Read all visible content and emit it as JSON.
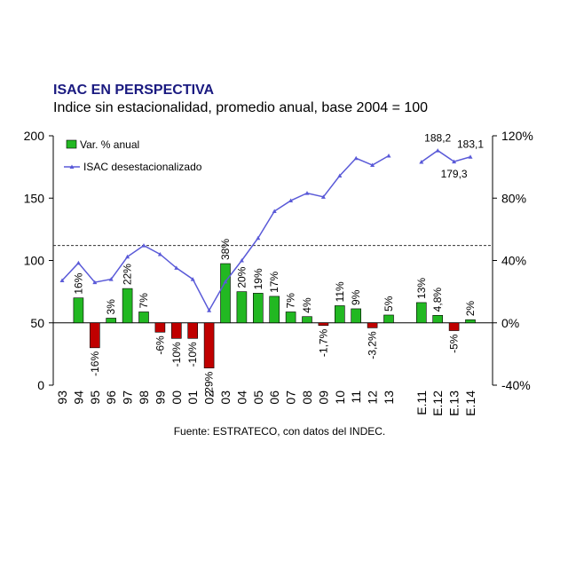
{
  "chart_data": {
    "type": "bar_line",
    "title": "ISAC EN PERSPECTIVA",
    "subtitle": "Indice sin estacionalidad, promedio anual, base 2004 = 100",
    "source": "Fuente: ESTRATECO, con datos del INDEC.",
    "categories": [
      "93",
      "94",
      "95",
      "96",
      "97",
      "98",
      "99",
      "00",
      "01",
      "02",
      "03",
      "04",
      "05",
      "06",
      "07",
      "08",
      "09",
      "10",
      "11",
      "12",
      "13",
      null,
      "E.11",
      "E.12",
      "E.13",
      "E.14"
    ],
    "ylim": [
      0,
      200
    ],
    "yticks": [
      0,
      50,
      100,
      150,
      200
    ],
    "y2lim": [
      -40,
      120
    ],
    "y2ticks": [
      {
        "value": -40,
        "label": "-40%"
      },
      {
        "value": 0,
        "label": "0%"
      },
      {
        "value": 40,
        "label": "40%"
      },
      {
        "value": 80,
        "label": "80%"
      },
      {
        "value": 120,
        "label": "120%"
      }
    ],
    "reference_line": 112,
    "series": [
      {
        "name": "Var. % anual",
        "type": "bar",
        "axis": "y2",
        "color": "#22b822",
        "negative_color": "#c00000",
        "values": [
          null,
          16,
          -16,
          3,
          22,
          7,
          -6,
          -10,
          -10,
          -29,
          38,
          20,
          19,
          17,
          7,
          4,
          -1.7,
          11,
          9,
          -3.2,
          5,
          null,
          13,
          4.8,
          -5,
          2
        ],
        "value_labels": [
          null,
          "16%",
          "-16%",
          "3%",
          "22%",
          "7%",
          "-6%",
          "-10%",
          "-10%",
          "-29%",
          "38%",
          "20%",
          "19%",
          "17%",
          "7%",
          "4%",
          "-1,7%",
          "11%",
          "9%",
          "-3,2%",
          "5%",
          null,
          "13%",
          "4,8%",
          "-5%",
          "2%"
        ]
      },
      {
        "name": "ISAC desestacionalizado",
        "type": "line",
        "color": "#5a5ad8",
        "values": [
          84,
          98,
          82.5,
          85,
          103,
          112,
          105,
          94,
          85,
          60,
          83,
          100,
          118,
          139.5,
          148,
          154,
          151,
          168,
          182,
          176.5,
          184,
          null,
          179,
          188.2,
          179.3,
          183.1
        ],
        "value_labels": [
          null,
          null,
          null,
          null,
          null,
          null,
          null,
          null,
          null,
          null,
          null,
          null,
          null,
          null,
          null,
          null,
          null,
          null,
          null,
          null,
          null,
          null,
          null,
          "188,2",
          "179,3",
          "183,1"
        ]
      }
    ]
  }
}
